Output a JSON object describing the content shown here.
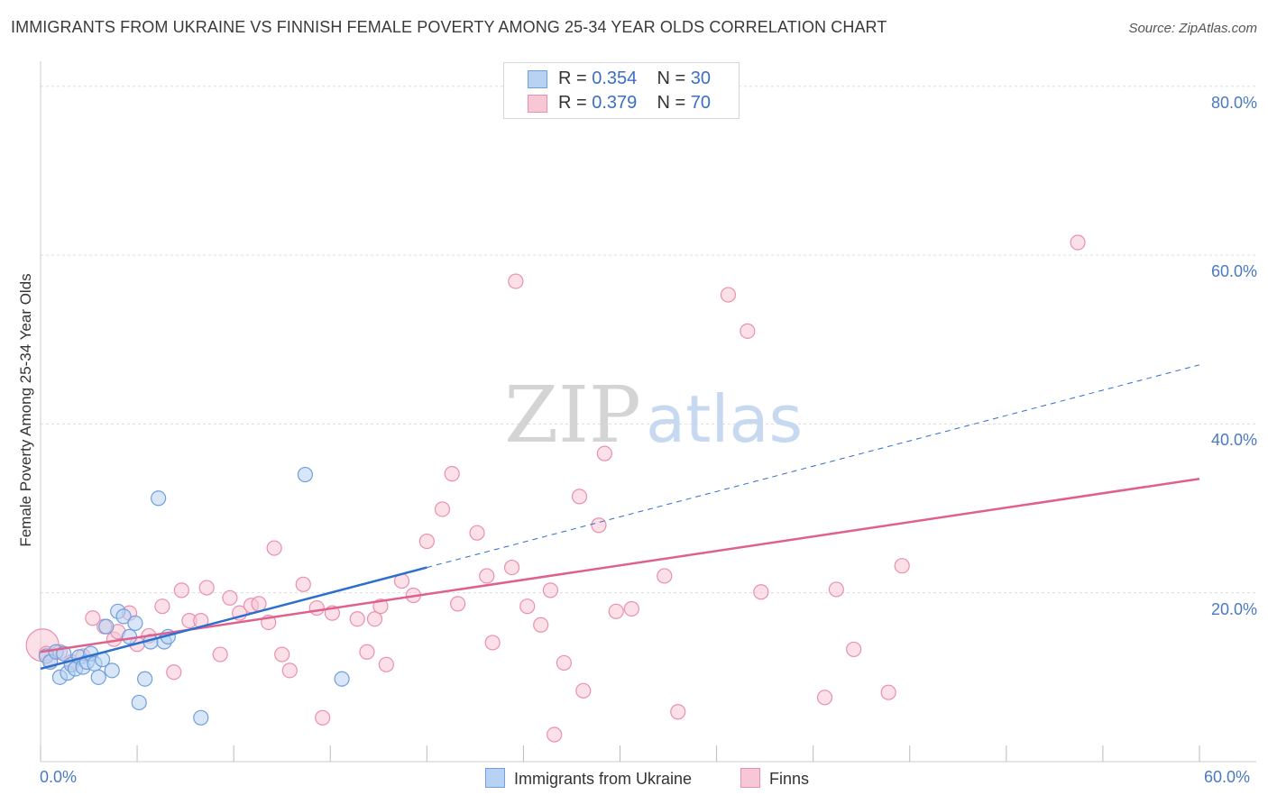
{
  "title": "IMMIGRANTS FROM UKRAINE VS FINNISH FEMALE POVERTY AMONG 25-34 YEAR OLDS CORRELATION CHART",
  "source": "Source: ZipAtlas.com",
  "watermark": {
    "zip": "ZIP",
    "atlas": "atlas"
  },
  "legend_top": {
    "rows": [
      {
        "r_label": "R = ",
        "r_value": "0.354",
        "n_label": "N = ",
        "n_value": "30"
      },
      {
        "r_label": "R = ",
        "r_value": "0.379",
        "n_label": "N = ",
        "n_value": "70"
      }
    ]
  },
  "legend_bottom": {
    "items": [
      "Immigrants from Ukraine",
      "Finns"
    ]
  },
  "colors": {
    "ukraine_fill": "#b8d2f3",
    "ukraine_stroke": "#6f9fdc",
    "ukraine_line": "#2d6fcc",
    "finns_fill": "#f8c7d6",
    "finns_stroke": "#ea8fae",
    "finns_line": "#e0608c",
    "tick_text": "#4a79c4",
    "grid": "#dddddd"
  },
  "chart_data": {
    "type": "scatter",
    "title": "IMMIGRANTS FROM UKRAINE VS FINNISH FEMALE POVERTY AMONG 25-34 YEAR OLDS CORRELATION CHART",
    "xlabel": "",
    "ylabel": "Female Poverty Among 25-34 Year Olds",
    "xlim": [
      0,
      60
    ],
    "ylim": [
      0,
      82
    ],
    "x_tick_labels": [
      "0.0%",
      "60.0%"
    ],
    "y_ticks": [
      20,
      40,
      60,
      80
    ],
    "y_tick_labels": [
      "20.0%",
      "40.0%",
      "60.0%",
      "80.0%"
    ],
    "grid": true,
    "legend_position": "top-center",
    "series": [
      {
        "name": "Immigrants from Ukraine",
        "R": 0.354,
        "N": 30,
        "points": [
          [
            0.3,
            12.5
          ],
          [
            0.5,
            11.8
          ],
          [
            0.8,
            13.0
          ],
          [
            1.0,
            10.0
          ],
          [
            1.2,
            12.8
          ],
          [
            1.4,
            10.5
          ],
          [
            1.6,
            11.5
          ],
          [
            1.8,
            11.0
          ],
          [
            2.0,
            12.4
          ],
          [
            2.2,
            11.2
          ],
          [
            2.4,
            11.8
          ],
          [
            2.6,
            12.8
          ],
          [
            2.8,
            11.6
          ],
          [
            3.0,
            10.0
          ],
          [
            3.2,
            12.1
          ],
          [
            3.4,
            16.0
          ],
          [
            3.7,
            10.8
          ],
          [
            4.0,
            17.8
          ],
          [
            4.3,
            17.2
          ],
          [
            4.6,
            14.8
          ],
          [
            4.9,
            16.4
          ],
          [
            5.1,
            7.0
          ],
          [
            5.4,
            9.8
          ],
          [
            5.7,
            14.2
          ],
          [
            6.1,
            31.2
          ],
          [
            6.4,
            14.2
          ],
          [
            6.6,
            14.8
          ],
          [
            8.3,
            5.2
          ],
          [
            13.7,
            34.0
          ],
          [
            15.6,
            9.8
          ]
        ],
        "trend_solid": [
          [
            0,
            11.0
          ],
          [
            20,
            23.0
          ]
        ],
        "trend_dashed": [
          [
            20,
            23.0
          ],
          [
            60,
            47.0
          ]
        ]
      },
      {
        "name": "Finns",
        "R": 0.379,
        "N": 70,
        "points": [
          [
            0.1,
            13.8
          ],
          [
            0.5,
            12.0
          ],
          [
            1.0,
            13.0
          ],
          [
            1.6,
            11.8
          ],
          [
            2.2,
            12.5
          ],
          [
            2.7,
            17.0
          ],
          [
            3.3,
            16.0
          ],
          [
            3.8,
            14.5
          ],
          [
            4.0,
            15.4
          ],
          [
            4.6,
            17.6
          ],
          [
            5.0,
            13.9
          ],
          [
            5.6,
            14.9
          ],
          [
            6.3,
            18.4
          ],
          [
            6.9,
            10.6
          ],
          [
            7.3,
            20.3
          ],
          [
            7.7,
            16.7
          ],
          [
            8.3,
            16.7
          ],
          [
            8.6,
            20.6
          ],
          [
            9.3,
            12.7
          ],
          [
            9.8,
            19.4
          ],
          [
            10.3,
            17.6
          ],
          [
            10.9,
            18.5
          ],
          [
            11.3,
            18.7
          ],
          [
            11.8,
            16.5
          ],
          [
            12.1,
            25.3
          ],
          [
            12.5,
            12.7
          ],
          [
            12.9,
            10.8
          ],
          [
            13.6,
            21.0
          ],
          [
            14.3,
            18.2
          ],
          [
            14.6,
            5.2
          ],
          [
            15.1,
            17.6
          ],
          [
            16.4,
            16.9
          ],
          [
            16.9,
            13.0
          ],
          [
            17.3,
            16.9
          ],
          [
            17.6,
            18.4
          ],
          [
            17.9,
            11.5
          ],
          [
            18.7,
            21.4
          ],
          [
            19.3,
            19.7
          ],
          [
            20.0,
            26.1
          ],
          [
            20.8,
            29.9
          ],
          [
            21.3,
            34.1
          ],
          [
            21.6,
            18.7
          ],
          [
            22.6,
            27.1
          ],
          [
            23.1,
            22.0
          ],
          [
            23.4,
            14.1
          ],
          [
            24.4,
            23.0
          ],
          [
            24.6,
            56.9
          ],
          [
            25.2,
            18.4
          ],
          [
            25.9,
            16.2
          ],
          [
            26.4,
            20.3
          ],
          [
            26.6,
            3.2
          ],
          [
            27.1,
            11.7
          ],
          [
            27.9,
            31.4
          ],
          [
            28.1,
            8.4
          ],
          [
            28.9,
            28.0
          ],
          [
            29.2,
            36.5
          ],
          [
            29.8,
            17.8
          ],
          [
            30.6,
            18.1
          ],
          [
            32.3,
            22.0
          ],
          [
            33.0,
            5.9
          ],
          [
            35.6,
            55.3
          ],
          [
            36.6,
            51.0
          ],
          [
            37.3,
            20.1
          ],
          [
            40.6,
            7.6
          ],
          [
            41.2,
            20.4
          ],
          [
            42.1,
            13.3
          ],
          [
            43.9,
            8.2
          ],
          [
            44.6,
            23.2
          ],
          [
            53.7,
            61.5
          ],
          [
            0.3,
            12.8
          ]
        ],
        "trend_solid": [
          [
            0,
            13.0
          ],
          [
            60,
            33.5
          ]
        ]
      }
    ]
  }
}
